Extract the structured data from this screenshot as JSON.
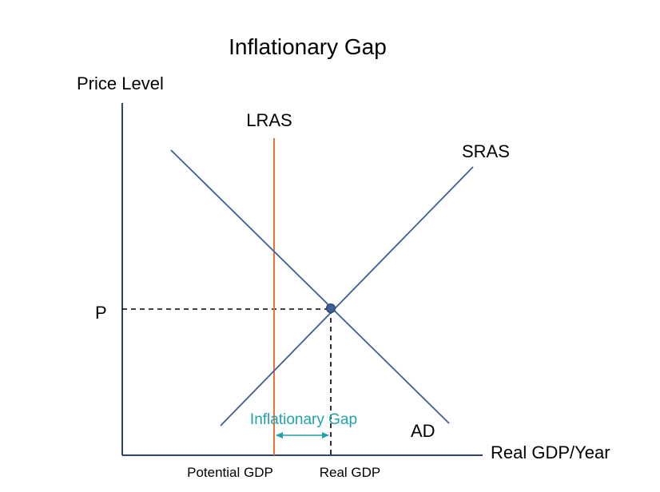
{
  "title": "Inflationary Gap",
  "axes": {
    "y_label": "Price Level",
    "x_label": "Real GDP/Year",
    "price_tick": "P",
    "potential_gdp_tick": "Potential GDP",
    "real_gdp_tick": "Real GDP"
  },
  "curves": {
    "lras": "LRAS",
    "sras": "SRAS",
    "ad": "AD"
  },
  "gap_label": "Inflationary Gap",
  "colors": {
    "axis": "#2e4470",
    "curve": "#3e5e96",
    "lras": "#e8743c",
    "gap": "#1fa3a8",
    "guide": "#000000",
    "text": "#000000"
  }
}
